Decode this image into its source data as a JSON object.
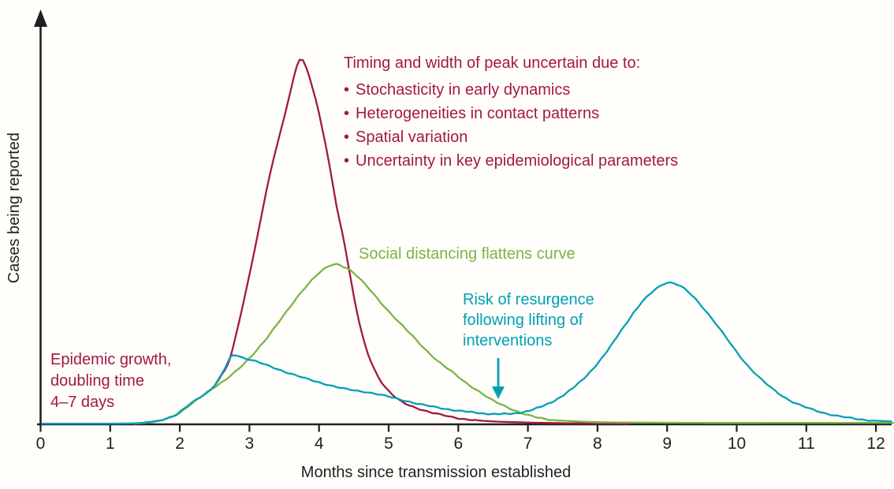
{
  "figure": {
    "background_color": "#fffefb",
    "axis_color": "#231f20",
    "ylabel": "Cases being reported",
    "xlabel": "Months since transmission established"
  },
  "annotations": {
    "uncertainty": {
      "color": "#a31745",
      "title": "Timing and width of peak uncertain due to:",
      "bullets": [
        "Stochasticity in early dynamics",
        "Heterogeneities in contact patterns",
        "Spatial variation",
        "Uncertainty in key epidemiological parameters"
      ]
    },
    "social": {
      "color": "#7cb444",
      "text": "Social distancing flattens curve"
    },
    "resurgence": {
      "color": "#00a0b4",
      "lines": [
        "Risk of resurgence",
        "following lifting of",
        "interventions"
      ]
    },
    "growth": {
      "color": "#a31745",
      "lines": [
        "Epidemic growth,",
        "doubling time",
        "4–7 days"
      ]
    }
  },
  "chart_data": {
    "type": "line",
    "title": "",
    "xlabel": "Months since transmission established",
    "ylabel": "Cases being reported",
    "x_ticks": [
      0,
      1,
      2,
      3,
      4,
      5,
      6,
      7,
      8,
      9,
      10,
      11,
      12
    ],
    "xlim": [
      0,
      12.3
    ],
    "ylim": [
      0,
      1.08
    ],
    "grid": false,
    "legend_position": "none",
    "y_units_note": "y-axis has no tick values; values below are relative case counts with the uncontrolled epidemic peak = 1",
    "series": [
      {
        "id": "no-intervention",
        "name": "Uncontrolled epidemic (growth, doubling time 4-7 days)",
        "color": "#a31745",
        "points": [
          [
            1.35,
            0.002
          ],
          [
            1.55,
            0.005
          ],
          [
            1.75,
            0.012
          ],
          [
            1.95,
            0.026
          ],
          [
            2.15,
            0.055
          ],
          [
            2.3,
            0.075
          ],
          [
            2.45,
            0.095
          ],
          [
            2.6,
            0.135
          ],
          [
            2.72,
            0.18
          ],
          [
            2.8,
            0.24
          ],
          [
            2.9,
            0.32
          ],
          [
            3.0,
            0.41
          ],
          [
            3.1,
            0.5
          ],
          [
            3.2,
            0.6
          ],
          [
            3.35,
            0.73
          ],
          [
            3.5,
            0.84
          ],
          [
            3.6,
            0.92
          ],
          [
            3.72,
            1.0
          ],
          [
            3.82,
            0.975
          ],
          [
            3.95,
            0.89
          ],
          [
            4.1,
            0.76
          ],
          [
            4.25,
            0.6
          ],
          [
            4.37,
            0.49
          ],
          [
            4.5,
            0.35
          ],
          [
            4.62,
            0.245
          ],
          [
            4.75,
            0.17
          ],
          [
            4.9,
            0.115
          ],
          [
            5.05,
            0.082
          ],
          [
            5.2,
            0.06
          ],
          [
            5.4,
            0.045
          ],
          [
            5.6,
            0.033
          ],
          [
            5.8,
            0.024
          ],
          [
            6.0,
            0.017
          ],
          [
            6.2,
            0.012
          ],
          [
            6.5,
            0.008
          ],
          [
            6.8,
            0.006
          ],
          [
            7.2,
            0.004
          ],
          [
            7.6,
            0.003
          ],
          [
            8.0,
            0.0025
          ],
          [
            8.45,
            0.002
          ]
        ]
      },
      {
        "id": "social-distancing",
        "name": "Social distancing flattens curve",
        "color": "#7cb444",
        "points": [
          [
            1.35,
            0.002
          ],
          [
            1.55,
            0.005
          ],
          [
            1.75,
            0.012
          ],
          [
            1.95,
            0.026
          ],
          [
            2.15,
            0.055
          ],
          [
            2.3,
            0.075
          ],
          [
            2.45,
            0.095
          ],
          [
            2.6,
            0.115
          ],
          [
            2.8,
            0.145
          ],
          [
            3.0,
            0.18
          ],
          [
            3.2,
            0.225
          ],
          [
            3.4,
            0.275
          ],
          [
            3.6,
            0.325
          ],
          [
            3.8,
            0.375
          ],
          [
            4.0,
            0.415
          ],
          [
            4.2,
            0.437
          ],
          [
            4.35,
            0.432
          ],
          [
            4.5,
            0.415
          ],
          [
            4.7,
            0.375
          ],
          [
            4.9,
            0.33
          ],
          [
            5.1,
            0.29
          ],
          [
            5.3,
            0.25
          ],
          [
            5.5,
            0.21
          ],
          [
            5.7,
            0.175
          ],
          [
            5.9,
            0.145
          ],
          [
            6.1,
            0.115
          ],
          [
            6.3,
            0.09
          ],
          [
            6.5,
            0.065
          ],
          [
            6.7,
            0.047
          ],
          [
            6.9,
            0.032
          ],
          [
            7.1,
            0.02
          ],
          [
            7.3,
            0.013
          ],
          [
            7.6,
            0.009
          ],
          [
            8.0,
            0.006
          ],
          [
            8.5,
            0.005
          ],
          [
            9.5,
            0.004
          ],
          [
            10.5,
            0.004
          ],
          [
            11.5,
            0.004
          ],
          [
            12.25,
            0.004
          ]
        ]
      },
      {
        "id": "lifting-interventions",
        "name": "Risk of resurgence following lifting of interventions",
        "color": "#00a0b4",
        "points": [
          [
            0.02,
            0.002
          ],
          [
            0.6,
            0.002
          ],
          [
            1.1,
            0.002
          ],
          [
            1.35,
            0.003
          ],
          [
            1.55,
            0.006
          ],
          [
            1.75,
            0.013
          ],
          [
            1.95,
            0.027
          ],
          [
            2.15,
            0.056
          ],
          [
            2.3,
            0.076
          ],
          [
            2.45,
            0.096
          ],
          [
            2.6,
            0.136
          ],
          [
            2.72,
            0.181
          ],
          [
            2.79,
            0.19
          ],
          [
            2.9,
            0.183
          ],
          [
            3.1,
            0.172
          ],
          [
            3.3,
            0.158
          ],
          [
            3.5,
            0.145
          ],
          [
            3.7,
            0.132
          ],
          [
            3.9,
            0.12
          ],
          [
            4.1,
            0.11
          ],
          [
            4.3,
            0.1
          ],
          [
            4.5,
            0.093
          ],
          [
            4.7,
            0.088
          ],
          [
            4.9,
            0.08
          ],
          [
            5.1,
            0.071
          ],
          [
            5.3,
            0.062
          ],
          [
            5.5,
            0.053
          ],
          [
            5.7,
            0.046
          ],
          [
            5.9,
            0.04
          ],
          [
            6.1,
            0.035
          ],
          [
            6.35,
            0.03
          ],
          [
            6.6,
            0.028
          ],
          [
            6.85,
            0.031
          ],
          [
            7.1,
            0.042
          ],
          [
            7.35,
            0.062
          ],
          [
            7.6,
            0.092
          ],
          [
            7.85,
            0.135
          ],
          [
            8.1,
            0.19
          ],
          [
            8.35,
            0.26
          ],
          [
            8.6,
            0.325
          ],
          [
            8.8,
            0.365
          ],
          [
            9.0,
            0.388
          ],
          [
            9.2,
            0.377
          ],
          [
            9.4,
            0.345
          ],
          [
            9.6,
            0.3
          ],
          [
            9.8,
            0.25
          ],
          [
            10.0,
            0.198
          ],
          [
            10.2,
            0.152
          ],
          [
            10.4,
            0.115
          ],
          [
            10.6,
            0.085
          ],
          [
            10.8,
            0.062
          ],
          [
            11.0,
            0.046
          ],
          [
            11.2,
            0.034
          ],
          [
            11.4,
            0.025
          ],
          [
            11.6,
            0.018
          ],
          [
            11.8,
            0.013
          ],
          [
            12.0,
            0.01
          ],
          [
            12.22,
            0.008
          ]
        ]
      }
    ]
  }
}
